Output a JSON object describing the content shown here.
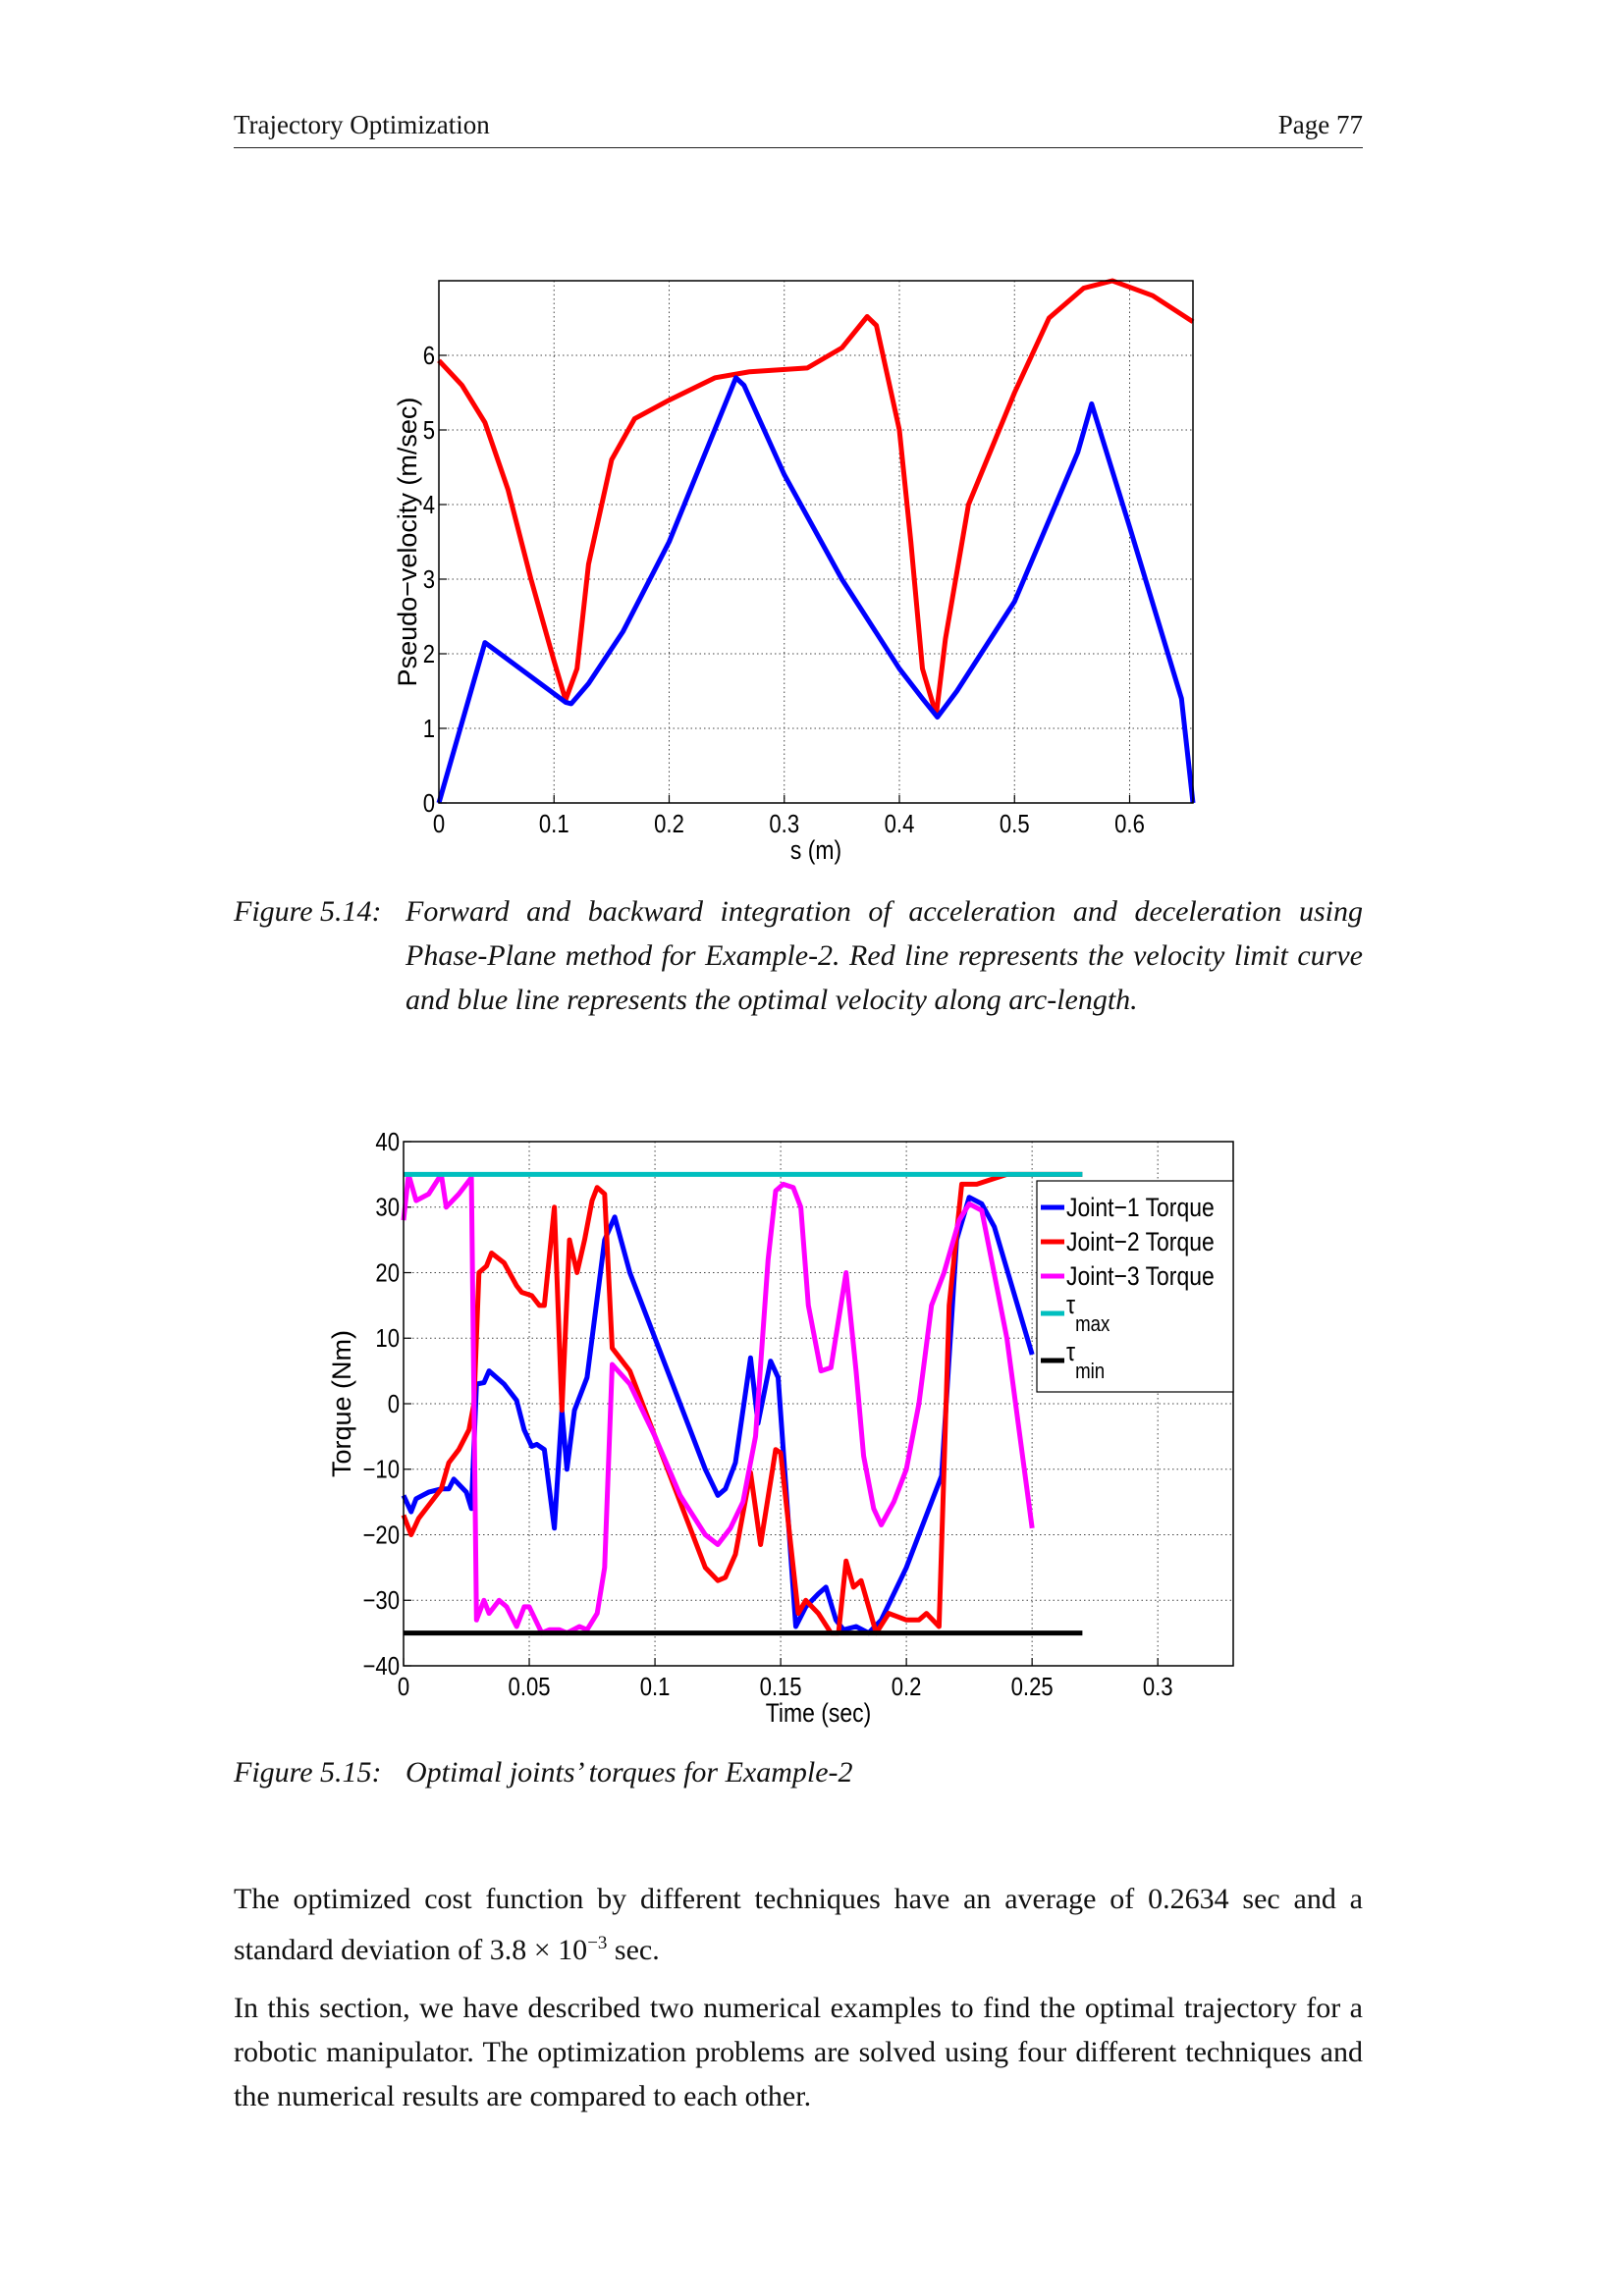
{
  "header": {
    "left": "Trajectory Optimization",
    "right": "Page 77"
  },
  "figure1": {
    "label": "Figure 5.14:",
    "caption": "Forward and backward integration of acceleration and deceleration using Phase-Plane method for Example-2. Red line represents the velocity limit curve and blue line represents the optimal velocity along arc-length."
  },
  "figure2": {
    "label": "Figure 5.15:",
    "caption": "Optimal joints’ torques for Example-2"
  },
  "paragraphs": [
    {
      "before": "The optimized cost function by different techniques have an average of 0.2634 sec and a standard deviation of 3.8 × 10",
      "sup": "−3",
      "after": " sec."
    },
    {
      "text": "In this section, we have described two numerical examples to find the optimal trajectory for a robotic manipulator. The optimization problems are solved using four different techniques and the numerical results are compared to each other."
    }
  ],
  "chart_data": [
    {
      "type": "line",
      "title": "",
      "xlabel": "s (m)",
      "ylabel": "Pseudo−velocity (m/sec)",
      "xlim": [
        0,
        0.655
      ],
      "ylim": [
        0,
        7
      ],
      "xticks": [
        0,
        0.1,
        0.2,
        0.3,
        0.4,
        0.5,
        0.6
      ],
      "xtick_labels": [
        "0",
        "0.1",
        "0.2",
        "0.3",
        "0.4",
        "0.5",
        "0.6"
      ],
      "yticks": [
        0,
        1,
        2,
        3,
        4,
        5,
        6
      ],
      "ytick_labels": [
        "0",
        "1",
        "2",
        "3",
        "4",
        "5",
        "6"
      ],
      "grid": true,
      "series": [
        {
          "name": "velocity limit curve",
          "color": "#ff0000",
          "x": [
            0,
            0.02,
            0.04,
            0.06,
            0.08,
            0.1,
            0.11,
            0.12,
            0.13,
            0.15,
            0.17,
            0.2,
            0.24,
            0.27,
            0.32,
            0.35,
            0.372,
            0.38,
            0.4,
            0.41,
            0.42,
            0.432,
            0.44,
            0.46,
            0.5,
            0.53,
            0.56,
            0.585,
            0.62,
            0.655
          ],
          "y": [
            5.93,
            5.6,
            5.1,
            4.2,
            3.0,
            1.9,
            1.38,
            1.8,
            3.2,
            4.6,
            5.15,
            5.4,
            5.7,
            5.78,
            5.83,
            6.1,
            6.52,
            6.4,
            5.0,
            3.5,
            1.8,
            1.18,
            2.2,
            4.0,
            5.5,
            6.5,
            6.9,
            7.0,
            6.8,
            6.45
          ]
        },
        {
          "name": "optimal velocity",
          "color": "#0000ff",
          "x": [
            0,
            0.04,
            0.11,
            0.115,
            0.13,
            0.16,
            0.2,
            0.258,
            0.265,
            0.3,
            0.35,
            0.4,
            0.42,
            0.433,
            0.45,
            0.5,
            0.555,
            0.567,
            0.6,
            0.645,
            0.655
          ],
          "y": [
            0,
            2.15,
            1.35,
            1.33,
            1.6,
            2.3,
            3.5,
            5.7,
            5.6,
            4.4,
            3.0,
            1.8,
            1.4,
            1.15,
            1.5,
            2.7,
            4.7,
            5.35,
            3.7,
            1.4,
            0
          ]
        }
      ]
    },
    {
      "type": "line",
      "title": "",
      "xlabel": "Time (sec)",
      "ylabel": "Torque (Nm)",
      "xlim": [
        0,
        0.33
      ],
      "ylim": [
        -40,
        40
      ],
      "xticks": [
        0,
        0.05,
        0.1,
        0.15,
        0.2,
        0.25,
        0.3
      ],
      "xtick_labels": [
        "0",
        "0.05",
        "0.1",
        "0.15",
        "0.2",
        "0.25",
        "0.3"
      ],
      "yticks": [
        -40,
        -30,
        -20,
        -10,
        0,
        10,
        20,
        30,
        40
      ],
      "ytick_labels": [
        "−40",
        "−30",
        "−20",
        "−10",
        "0",
        "10",
        "20",
        "30",
        "40"
      ],
      "grid": true,
      "legend_position": "top-right",
      "series": [
        {
          "name": "Joint−1 Torque",
          "color": "#0000ff",
          "x": [
            0,
            0.003,
            0.005,
            0.01,
            0.015,
            0.018,
            0.02,
            0.025,
            0.027,
            0.029,
            0.032,
            0.034,
            0.04,
            0.045,
            0.048,
            0.051,
            0.053,
            0.056,
            0.06,
            0.063,
            0.065,
            0.068,
            0.073,
            0.08,
            0.084,
            0.09,
            0.1,
            0.11,
            0.12,
            0.125,
            0.128,
            0.132,
            0.138,
            0.141,
            0.146,
            0.149,
            0.156,
            0.16,
            0.165,
            0.168,
            0.172,
            0.175,
            0.18,
            0.185,
            0.19,
            0.2,
            0.21,
            0.214,
            0.22,
            0.225,
            0.23,
            0.235,
            0.25
          ],
          "y": [
            -14,
            -16.5,
            -14.5,
            -13.5,
            -13,
            -13,
            -11.5,
            -13.5,
            -16,
            3,
            3.2,
            5,
            3,
            0.5,
            -4,
            -6.5,
            -6.2,
            -7,
            -19,
            -1,
            -10,
            -1,
            4,
            25,
            28.5,
            20,
            10,
            0,
            -10,
            -14,
            -13,
            -9,
            7,
            -3,
            6.5,
            4,
            -34,
            -31,
            -29,
            -28,
            -33,
            -34.5,
            -34,
            -35,
            -33,
            -25,
            -15,
            -11,
            25,
            31.5,
            30.5,
            27,
            7.5
          ]
        },
        {
          "name": "Joint−2 Torque",
          "color": "#ff0000",
          "x": [
            0,
            0.003,
            0.006,
            0.01,
            0.015,
            0.018,
            0.022,
            0.026,
            0.028,
            0.03,
            0.033,
            0.035,
            0.04,
            0.045,
            0.047,
            0.051,
            0.054,
            0.056,
            0.06,
            0.063,
            0.066,
            0.069,
            0.072,
            0.075,
            0.077,
            0.08,
            0.083,
            0.09,
            0.1,
            0.11,
            0.12,
            0.125,
            0.128,
            0.132,
            0.138,
            0.142,
            0.148,
            0.15,
            0.157,
            0.16,
            0.165,
            0.17,
            0.173,
            0.176,
            0.179,
            0.182,
            0.188,
            0.193,
            0.2,
            0.205,
            0.208,
            0.213,
            0.217,
            0.222,
            0.228,
            0.24,
            0.27
          ],
          "y": [
            -17,
            -20,
            -17.5,
            -15.5,
            -13,
            -9,
            -7,
            -4,
            0,
            20,
            21,
            23,
            21.5,
            18,
            17,
            16.5,
            15,
            15,
            30,
            -1,
            25,
            20,
            25,
            31,
            33,
            32,
            8.5,
            5,
            -5,
            -15,
            -25,
            -27,
            -26.5,
            -23,
            -10.5,
            -21.5,
            -7,
            -7.5,
            -32,
            -30,
            -32,
            -35,
            -35,
            -24,
            -28,
            -27,
            -35,
            -32,
            -33,
            -33,
            -32,
            -34,
            15,
            33.5,
            33.5,
            35,
            35
          ]
        },
        {
          "name": "Joint−3 Torque",
          "color": "#ff00ff",
          "x": [
            0,
            0.002,
            0.005,
            0.01,
            0.015,
            0.017,
            0.022,
            0.027,
            0.029,
            0.032,
            0.034,
            0.038,
            0.041,
            0.045,
            0.048,
            0.05,
            0.055,
            0.058,
            0.062,
            0.065,
            0.07,
            0.073,
            0.077,
            0.08,
            0.083,
            0.09,
            0.1,
            0.11,
            0.12,
            0.125,
            0.13,
            0.135,
            0.14,
            0.145,
            0.148,
            0.151,
            0.155,
            0.158,
            0.161,
            0.166,
            0.17,
            0.176,
            0.18,
            0.183,
            0.187,
            0.19,
            0.195,
            0.2,
            0.205,
            0.21,
            0.215,
            0.221,
            0.225,
            0.23,
            0.24,
            0.25
          ],
          "y": [
            28,
            35,
            31,
            32,
            35,
            30,
            32,
            34.5,
            -33,
            -30,
            -32,
            -30,
            -31,
            -34,
            -31,
            -31,
            -35,
            -34.5,
            -34.5,
            -35,
            -34,
            -34.5,
            -32,
            -25,
            6,
            3,
            -5,
            -14,
            -20,
            -21.5,
            -19,
            -15,
            -5,
            22,
            32.5,
            33.5,
            33,
            30,
            15,
            5,
            5.5,
            20,
            5,
            -8,
            -16,
            -18.5,
            -15,
            -10,
            0,
            15,
            20,
            28,
            30.5,
            29.5,
            10,
            -19
          ]
        },
        {
          "name": "τ",
          "sub": "max",
          "color": "#00bfbf",
          "x": [
            0,
            0.27
          ],
          "y": [
            35,
            35
          ]
        },
        {
          "name": "τ",
          "sub": "min",
          "color": "#000000",
          "x": [
            0,
            0.27
          ],
          "y": [
            -35,
            -35
          ]
        }
      ]
    }
  ]
}
